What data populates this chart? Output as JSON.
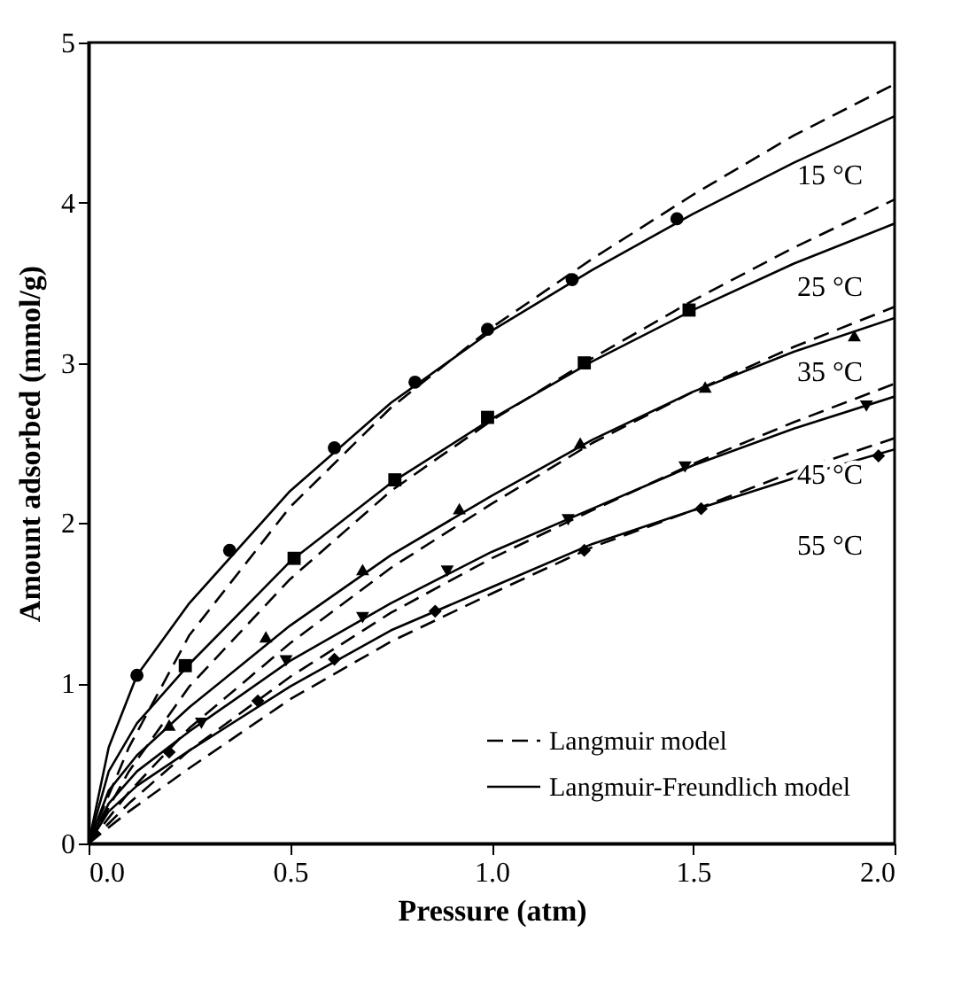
{
  "chart_data": {
    "type": "line",
    "xlabel": "Pressure (atm)",
    "ylabel": "Amount adsorbed (mmol/g)",
    "xlim": [
      0,
      2
    ],
    "ylim": [
      0,
      5
    ],
    "xticks": [
      {
        "value": 0,
        "label": "0.0"
      },
      {
        "value": 0.5,
        "label": "0.5"
      },
      {
        "value": 1,
        "label": "1.0"
      },
      {
        "value": 1.5,
        "label": "1.5"
      },
      {
        "value": 2,
        "label": "2.0"
      }
    ],
    "yticks": [
      0,
      1,
      2,
      3,
      4,
      5
    ],
    "grid": false,
    "legend": "bottom right",
    "series": [
      {
        "type": "scatter",
        "marker": "circle",
        "color": "#000000",
        "x": [
          0.12,
          0.35,
          0.61,
          0.81,
          0.99,
          1.2,
          1.46
        ],
        "values": [
          1.05,
          1.83,
          2.47,
          2.88,
          3.21,
          3.52,
          3.9
        ]
      },
      {
        "type": "scatter",
        "marker": "square",
        "color": "#000000",
        "x": [
          0.24,
          0.51,
          0.76,
          0.99,
          1.23,
          1.49
        ],
        "values": [
          1.11,
          1.78,
          2.27,
          2.66,
          3.0,
          3.33
        ]
      },
      {
        "type": "scatter",
        "marker": "triangle",
        "color": "#000000",
        "x": [
          0.2,
          0.44,
          0.68,
          0.92,
          1.22,
          1.53,
          1.9
        ],
        "values": [
          0.74,
          1.29,
          1.71,
          2.09,
          2.5,
          2.85,
          3.17
        ]
      },
      {
        "type": "scatter",
        "marker": "triangle",
        "color": "#000000",
        "x": [
          0.28,
          0.49,
          0.68,
          0.89,
          1.19,
          1.48,
          1.93
        ],
        "values": [
          0.75,
          1.14,
          1.41,
          1.7,
          2.02,
          2.35,
          2.73
        ]
      },
      {
        "type": "scatter",
        "marker": "diamond",
        "color": "#000000",
        "x": [
          0.2,
          0.42,
          0.61,
          0.86,
          1.23,
          1.52,
          1.96
        ],
        "values": [
          0.57,
          0.89,
          1.15,
          1.45,
          1.83,
          2.09,
          2.42
        ]
      },
      {
        "name": "Langmuir model",
        "line_style": "dashed",
        "color": "#000000",
        "x": [
          0,
          0.1,
          0.25,
          0.5,
          0.75,
          1,
          1.25,
          1.5,
          1.75,
          2
        ],
        "values": [
          0,
          0.6,
          1.3,
          2.1,
          2.72,
          3.22,
          3.65,
          4.05,
          4.42,
          4.74
        ]
      },
      {
        "line_style": "dashed",
        "color": "#000000",
        "x": [
          0,
          0.1,
          0.25,
          0.5,
          0.75,
          1,
          1.25,
          1.5,
          1.75,
          2
        ],
        "values": [
          0,
          0.45,
          0.98,
          1.65,
          2.2,
          2.64,
          3.03,
          3.39,
          3.72,
          4.02
        ]
      },
      {
        "line_style": "dashed",
        "color": "#000000",
        "x": [
          0,
          0.1,
          0.25,
          0.5,
          0.75,
          1,
          1.25,
          1.5,
          1.75,
          2
        ],
        "values": [
          0,
          0.32,
          0.72,
          1.25,
          1.72,
          2.12,
          2.5,
          2.82,
          3.1,
          3.35
        ]
      },
      {
        "line_style": "dashed",
        "color": "#000000",
        "x": [
          0,
          0.1,
          0.25,
          0.5,
          0.75,
          1,
          1.25,
          1.5,
          1.75,
          2
        ],
        "values": [
          0,
          0.25,
          0.58,
          1.04,
          1.44,
          1.78,
          2.08,
          2.37,
          2.63,
          2.87
        ]
      },
      {
        "line_style": "dashed",
        "color": "#000000",
        "x": [
          0,
          0.1,
          0.25,
          0.5,
          0.75,
          1,
          1.25,
          1.5,
          1.75,
          2
        ],
        "values": [
          0,
          0.2,
          0.47,
          0.9,
          1.26,
          1.56,
          1.85,
          2.08,
          2.32,
          2.53
        ]
      },
      {
        "name": "Langmuir-Freundlich model",
        "line_style": "solid",
        "color": "#000000",
        "x": [
          0,
          0.05,
          0.12,
          0.25,
          0.5,
          0.75,
          1,
          1.25,
          1.5,
          1.75,
          2
        ],
        "values": [
          0,
          0.6,
          1.05,
          1.5,
          2.2,
          2.75,
          3.2,
          3.58,
          3.93,
          4.25,
          4.54
        ]
      },
      {
        "line_style": "solid",
        "color": "#000000",
        "x": [
          0,
          0.05,
          0.12,
          0.25,
          0.5,
          0.75,
          1,
          1.25,
          1.5,
          1.75,
          2
        ],
        "values": [
          0,
          0.45,
          0.75,
          1.12,
          1.76,
          2.25,
          2.65,
          3.01,
          3.33,
          3.62,
          3.87
        ]
      },
      {
        "line_style": "solid",
        "color": "#000000",
        "x": [
          0,
          0.05,
          0.12,
          0.25,
          0.5,
          0.75,
          1,
          1.25,
          1.5,
          1.75,
          2
        ],
        "values": [
          0,
          0.33,
          0.55,
          0.85,
          1.36,
          1.8,
          2.17,
          2.52,
          2.82,
          3.07,
          3.28
        ]
      },
      {
        "line_style": "solid",
        "color": "#000000",
        "x": [
          0,
          0.05,
          0.12,
          0.25,
          0.5,
          0.75,
          1,
          1.25,
          1.5,
          1.75,
          2
        ],
        "values": [
          0,
          0.25,
          0.45,
          0.7,
          1.14,
          1.5,
          1.82,
          2.09,
          2.36,
          2.59,
          2.79
        ]
      },
      {
        "line_style": "solid",
        "color": "#000000",
        "x": [
          0,
          0.05,
          0.12,
          0.25,
          0.5,
          0.75,
          1,
          1.25,
          1.5,
          1.75,
          2
        ],
        "values": [
          0,
          0.2,
          0.36,
          0.58,
          0.98,
          1.33,
          1.6,
          1.87,
          2.08,
          2.28,
          2.46
        ]
      }
    ],
    "annotations": [
      "15 °C",
      "25 °C",
      "35 °C",
      "45 °C",
      "55 °C"
    ]
  }
}
